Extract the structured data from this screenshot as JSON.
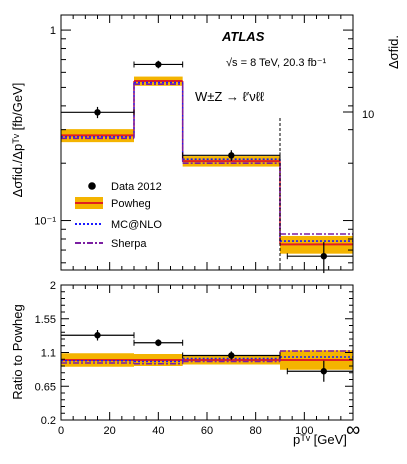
{
  "labels": {
    "atlas": "ATLAS",
    "energy": "√s = 8 TeV, 20.3 fb⁻¹",
    "process": "W±Z → ℓ′νℓℓ",
    "ylabel_top": "Δσfid./Δpᵀᵛ [fb/GeV]",
    "ylabel_right": "Δσfid.",
    "ylabel_bottom": "Ratio to Powheg",
    "xlabel": "pᵀᵛ [GeV]",
    "infinity": "∞",
    "right_tick_10": "10"
  },
  "legend": [
    {
      "label": "Data 2012"
    },
    {
      "label": "Powheg"
    },
    {
      "label": "MC@NLO"
    },
    {
      "label": "Sherpa"
    }
  ],
  "colors": {
    "powheg_band": "#f4b400",
    "powheg_line": "#e02020",
    "mcnlo": "#1a1aff",
    "sherpa": "#7b1fa2",
    "data": "#000000"
  },
  "chart_data": [
    {
      "type": "bar",
      "xlim": [
        0,
        120
      ],
      "ylim": [
        0.055,
        1.2
      ],
      "yscale": "log",
      "xticks": [
        "0",
        "20",
        "40",
        "60",
        "80",
        "100"
      ],
      "xtick_values": [
        0,
        20,
        40,
        60,
        80,
        100
      ],
      "yticks": [
        {
          "v": 1,
          "label": "1"
        },
        {
          "v": 0.1,
          "label": "10⁻¹"
        }
      ],
      "bins": [
        [
          0,
          30
        ],
        [
          30,
          50
        ],
        [
          50,
          90
        ],
        [
          90,
          120
        ]
      ],
      "series": [
        {
          "name": "Data 2012",
          "x": [
            15,
            40,
            70,
            108
          ],
          "xerr": [
            15,
            10,
            20,
            15
          ],
          "y": [
            0.37,
            0.66,
            0.22,
            0.065
          ],
          "yerr": [
            0.025,
            0.03,
            0.014,
            0.012
          ]
        },
        {
          "name": "Powheg",
          "values": [
            0.28,
            0.54,
            0.205,
            0.075
          ],
          "band": [
            0.022,
            0.03,
            0.013,
            0.008
          ]
        },
        {
          "name": "MC@NLO",
          "values": [
            0.275,
            0.53,
            0.21,
            0.078
          ]
        },
        {
          "name": "Sherpa",
          "values": [
            0.27,
            0.52,
            0.2,
            0.085
          ]
        }
      ],
      "dashed_boundary_x": 90,
      "right_axis_ticks": [
        "10"
      ]
    },
    {
      "type": "bar",
      "xlim": [
        0,
        120
      ],
      "ylim": [
        0.2,
        2
      ],
      "yticks": [
        "0.2",
        "0.65",
        "1.1",
        "1.55",
        "2"
      ],
      "ytick_values": [
        0.2,
        0.65,
        1.1,
        1.55,
        2
      ],
      "xticks": [
        "0",
        "20",
        "40",
        "60",
        "80",
        "100"
      ],
      "xtick_values": [
        0,
        20,
        40,
        60,
        80,
        100
      ],
      "ylabel": "Ratio to Powheg",
      "bins": [
        [
          0,
          30
        ],
        [
          30,
          50
        ],
        [
          50,
          90
        ],
        [
          90,
          120
        ]
      ],
      "series": [
        {
          "name": "Data 2012",
          "x": [
            15,
            40,
            70,
            108
          ],
          "xerr": [
            15,
            10,
            20,
            15
          ],
          "y": [
            1.33,
            1.23,
            1.06,
            0.85
          ],
          "yerr": [
            0.07,
            0.045,
            0.055,
            0.14
          ]
        },
        {
          "name": "Powheg",
          "values": [
            1,
            1,
            1,
            1
          ],
          "band": [
            0.09,
            0.08,
            0.06,
            0.13
          ]
        },
        {
          "name": "MC@NLO",
          "values": [
            0.99,
            0.98,
            1.02,
            1.04
          ]
        },
        {
          "name": "Sherpa",
          "values": [
            0.96,
            0.95,
            0.98,
            1.12
          ]
        }
      ]
    }
  ]
}
